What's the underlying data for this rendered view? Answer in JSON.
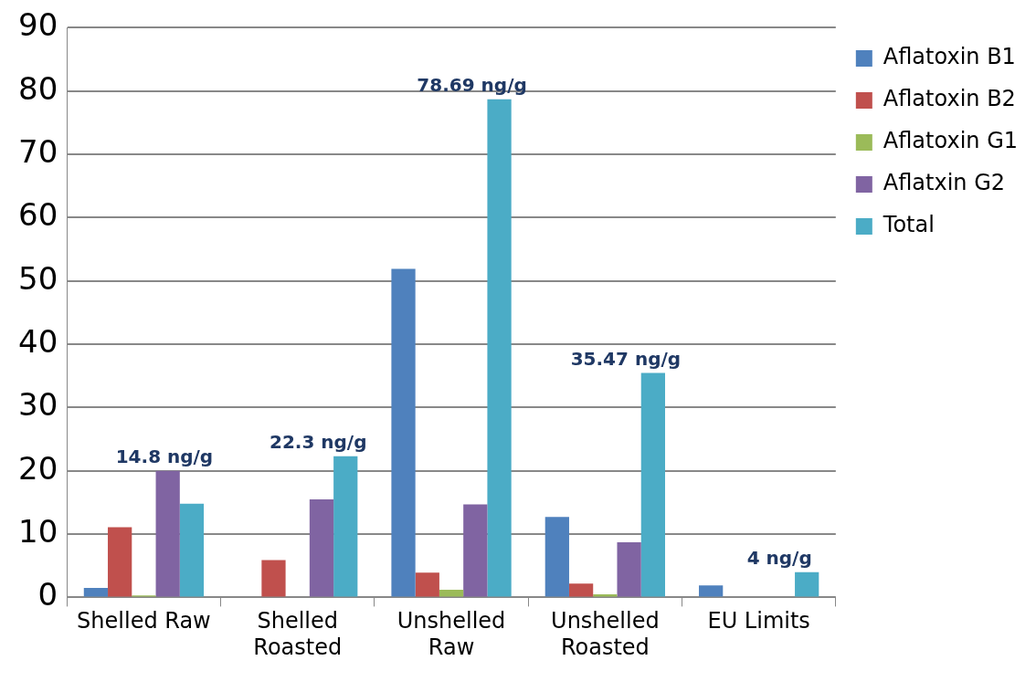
{
  "chart_data": {
    "type": "bar",
    "categories": [
      "Shelled Raw",
      "Shelled Roasted",
      "Unshelled Raw",
      "Unshelled Roasted",
      "EU Limits"
    ],
    "series": [
      {
        "name": "Aflatoxin B1",
        "color": "#4f81bd",
        "values": [
          1.5,
          0,
          51.9,
          12.7,
          1.9
        ]
      },
      {
        "name": "Aflatoxin B2",
        "color": "#c0504d",
        "values": [
          11.1,
          5.9,
          3.9,
          2.2,
          0
        ]
      },
      {
        "name": "Aflatoxin G1",
        "color": "#9bbb59",
        "values": [
          0.3,
          0,
          1.2,
          0.5,
          0
        ]
      },
      {
        "name": "Aflatxin G2",
        "color": "#8064a2",
        "values": [
          20,
          15.5,
          14.7,
          8.7,
          0
        ]
      },
      {
        "name": "Total",
        "color": "#4bacc6",
        "values": [
          14.8,
          22.3,
          78.69,
          35.47,
          4
        ],
        "value_labels": [
          "14.8 ng/g",
          "22.3 ng/g",
          "78.69 ng/g",
          "35.47 ng/g",
          "4 ng/g"
        ]
      }
    ],
    "ylim": [
      0,
      90
    ],
    "yticks": [
      0,
      10,
      20,
      30,
      40,
      50,
      60,
      70,
      80,
      90
    ],
    "grid": "y",
    "legend": "right"
  }
}
